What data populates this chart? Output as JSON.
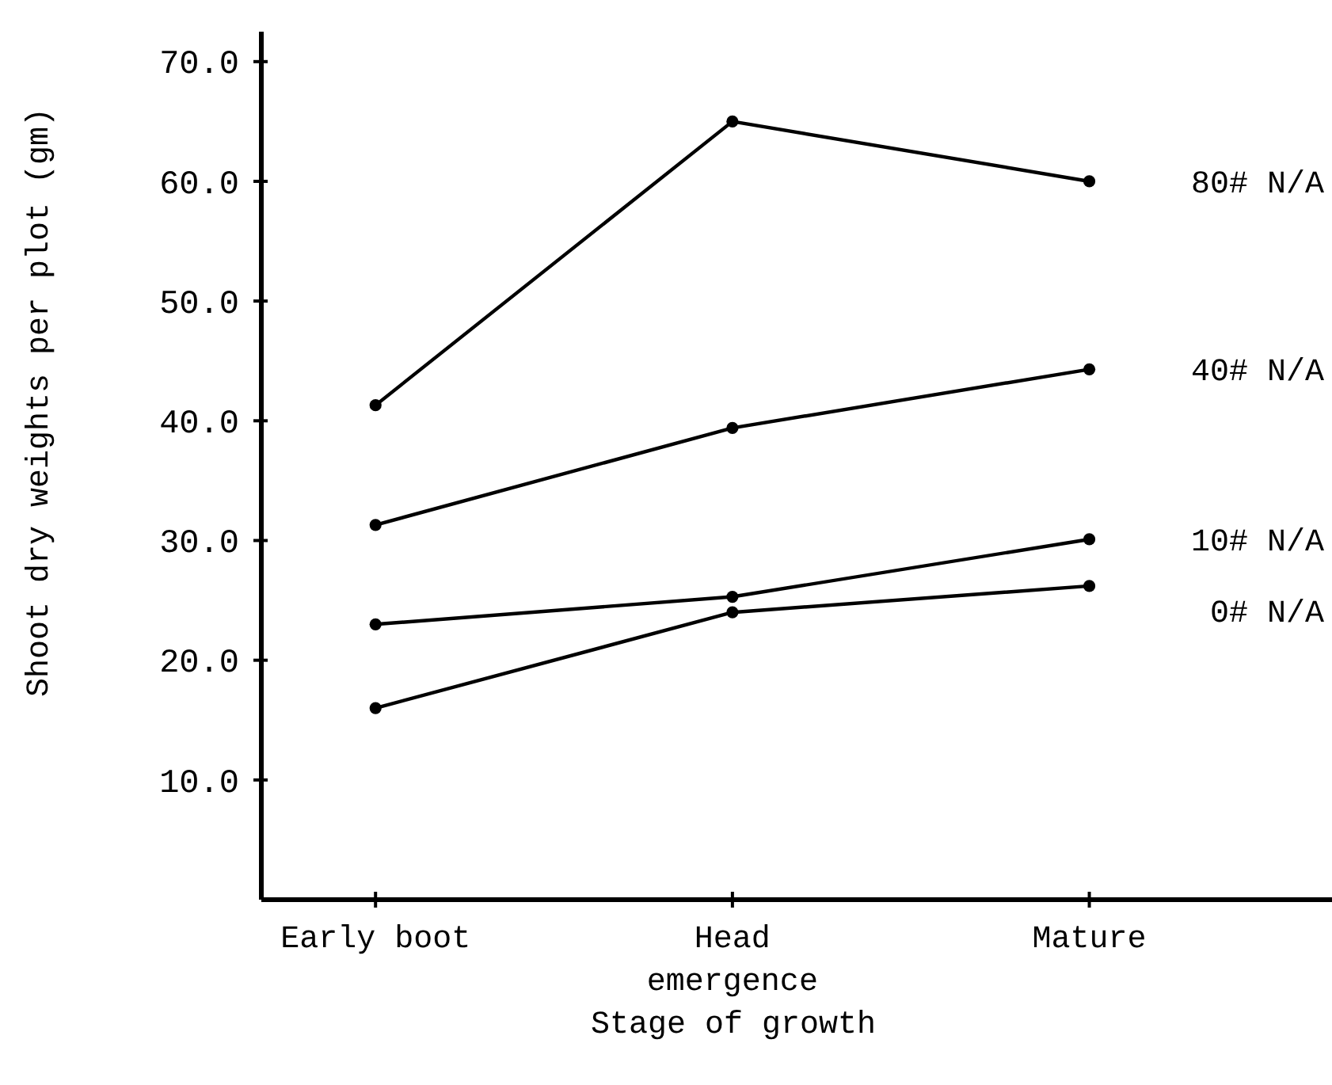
{
  "chart_data": {
    "type": "line",
    "xlabel": "Stage of growth",
    "ylabel": "Shoot dry weights per plot (gm)",
    "categories": [
      "Early boot",
      "Head\nemergence",
      "Mature"
    ],
    "series": [
      {
        "name": "80# N/A",
        "color": "#000000",
        "values": [
          41.3,
          65.0,
          60.0
        ]
      },
      {
        "name": "40# N/A",
        "color": "#000000",
        "values": [
          31.3,
          39.4,
          44.3
        ]
      },
      {
        "name": "10# N/A",
        "color": "#000000",
        "values": [
          23.0,
          25.3,
          30.1
        ]
      },
      {
        "name": "0# N/A",
        "color": "#000000",
        "values": [
          16.0,
          24.0,
          26.2
        ]
      }
    ],
    "ylim": [
      0,
      72.5
    ],
    "yticks": [
      {
        "value": 10,
        "label": "10.0"
      },
      {
        "value": 20,
        "label": "20.0"
      },
      {
        "value": 30,
        "label": "30.0"
      },
      {
        "value": 40,
        "label": "40.0"
      },
      {
        "value": 50,
        "label": "50.0"
      },
      {
        "value": 60,
        "label": "60.0"
      },
      {
        "value": 70,
        "label": "70.0"
      }
    ],
    "marker": "circle",
    "line_style": "solid"
  }
}
